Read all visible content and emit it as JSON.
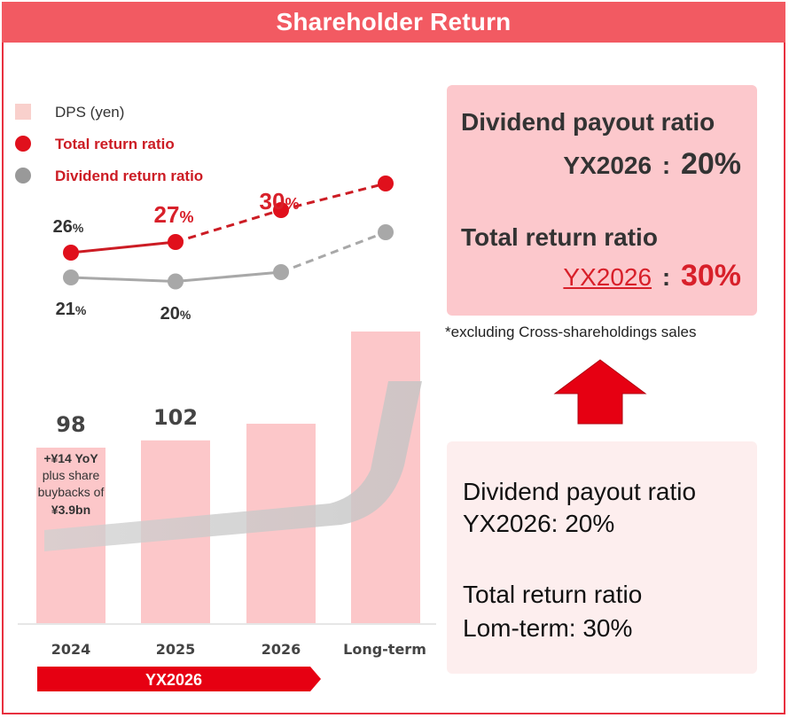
{
  "header": {
    "title": "Shareholder Return"
  },
  "legend": [
    {
      "label": "DPS (yen)",
      "color": "#f9d0cc",
      "shape": "square"
    },
    {
      "label": "Total return ratio",
      "color": "#e0101c",
      "shape": "circle"
    },
    {
      "label": "Dividend return ratio",
      "color": "#999999",
      "shape": "circle"
    }
  ],
  "chart_data": {
    "type": "bar",
    "categories": [
      "2024",
      "2025",
      "2026",
      "Long-term"
    ],
    "series": [
      {
        "name": "DPS (yen)",
        "values": [
          98,
          102,
          null,
          null
        ],
        "labels": [
          "98",
          "102",
          "",
          ""
        ]
      },
      {
        "name": "Total return ratio",
        "values": [
          26,
          27,
          30,
          null
        ],
        "labels": [
          "26%",
          "27%",
          "30%",
          ""
        ]
      },
      {
        "name": "Dividend return ratio",
        "values": [
          21,
          20,
          null,
          null
        ],
        "labels": [
          "21%",
          "20%",
          "",
          ""
        ]
      }
    ],
    "annotation": [
      "+¥14 YoY",
      "plus share",
      "buybacks of",
      "¥3.9bn"
    ],
    "banner": "YX2026",
    "legend_position": "top-left"
  },
  "target_box": {
    "line1": "Dividend payout ratio",
    "line2_label": "YX2026",
    "line2_value": "20%",
    "line3": "Total return ratio",
    "line4_label": "YX2026",
    "line4_value": "30%",
    "separator": ":"
  },
  "footnote": "*excluding Cross-shareholdings sales",
  "result_box": {
    "line1": "Dividend payout ratio",
    "line2": "YX2026: 20%",
    "line3": "Total return ratio",
    "line4": "Lom-term: 30%"
  },
  "colors": {
    "header": "#f25a62",
    "total_line": "#cc1c24",
    "dividend_line": "#a8a8a8",
    "bar": "#fcc7c9",
    "arrow": "#e60012",
    "banner": "#e60012"
  }
}
